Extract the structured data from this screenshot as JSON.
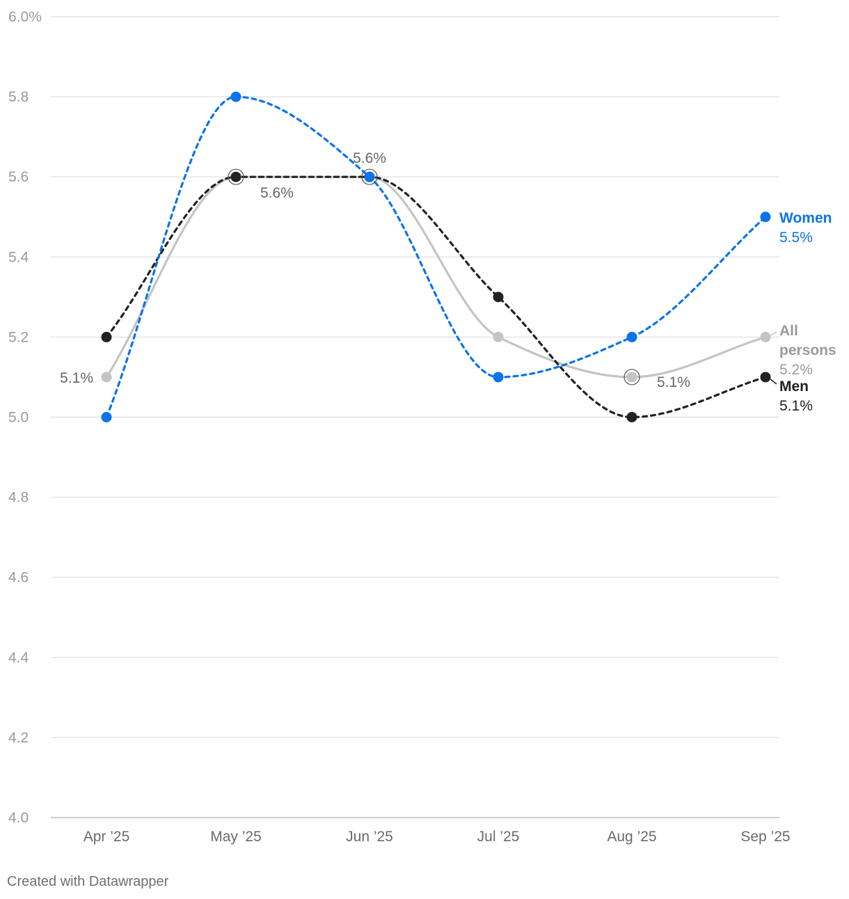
{
  "chart_data": {
    "type": "line",
    "categories": [
      "Apr ’25",
      "May ’25",
      "Jun ’25",
      "Jul ’25",
      "Aug ’25",
      "Sep ’25"
    ],
    "ylim": [
      4.0,
      6.0
    ],
    "yticks": [
      {
        "value": 6.0,
        "label": "6.0%"
      },
      {
        "value": 5.8,
        "label": "5.8"
      },
      {
        "value": 5.6,
        "label": "5.6"
      },
      {
        "value": 5.4,
        "label": "5.4"
      },
      {
        "value": 5.2,
        "label": "5.2"
      },
      {
        "value": 5.0,
        "label": "5.0"
      },
      {
        "value": 4.8,
        "label": "4.8"
      },
      {
        "value": 4.6,
        "label": "4.6"
      },
      {
        "value": 4.4,
        "label": "4.4"
      },
      {
        "value": 4.2,
        "label": "4.2"
      },
      {
        "value": 4.0,
        "label": "4.0"
      }
    ],
    "grid": true,
    "series": [
      {
        "key": "all",
        "name": "All persons",
        "values": [
          5.1,
          5.6,
          5.6,
          5.2,
          5.1,
          5.2
        ],
        "color": "#c4c4c4",
        "style": "solid",
        "end_label": "5.2%"
      },
      {
        "key": "men",
        "name": "Men",
        "values": [
          5.2,
          5.6,
          5.6,
          5.3,
          5.0,
          5.1
        ],
        "color": "#222222",
        "style": "dashed",
        "end_label": "5.1%"
      },
      {
        "key": "women",
        "name": "Women",
        "values": [
          5.0,
          5.8,
          5.6,
          5.1,
          5.2,
          5.5
        ],
        "color": "#0b73eb",
        "style": "dashed",
        "end_label": "5.5%"
      }
    ],
    "annotations": [
      {
        "series": "all",
        "index": 0,
        "text": "5.1%"
      },
      {
        "series": "all",
        "index": 1,
        "text": "5.6%"
      },
      {
        "series": "all",
        "index": 2,
        "text": "5.6%"
      },
      {
        "series": "all",
        "index": 4,
        "text": "5.1%"
      }
    ]
  },
  "footer": "Created with Datawrapper"
}
